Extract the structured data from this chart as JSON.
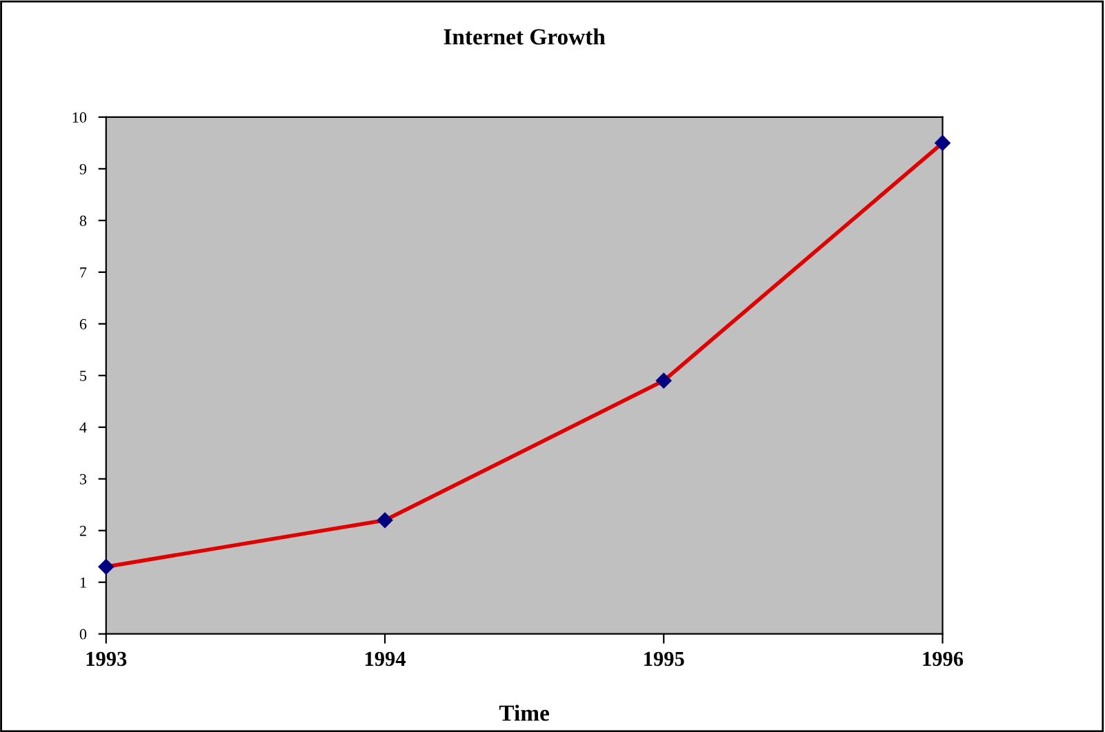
{
  "chart_data": {
    "type": "line",
    "title": "Internet Growth",
    "xlabel": "Time",
    "x": [
      1993,
      1994,
      1995,
      1996
    ],
    "series": [
      {
        "color": "#e00000",
        "values": [
          1.3,
          2.2,
          4.9,
          9.5
        ]
      }
    ],
    "xlim": [
      1993,
      1996
    ],
    "xticks": [
      1993,
      1994,
      1995,
      1996
    ],
    "ylim": [
      0,
      10
    ],
    "yticks": [
      0,
      1,
      2,
      3,
      4,
      5,
      6,
      7,
      8,
      9,
      10
    ],
    "marker": "diamond",
    "grid": false,
    "legend": false
  }
}
